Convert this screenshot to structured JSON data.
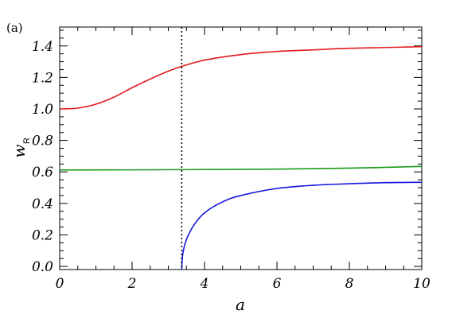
{
  "chart_data": {
    "type": "line",
    "panel_label": "(a)",
    "xlabel": "a",
    "ylabel": "w",
    "ylabel_subscript": "R",
    "xlim": [
      0,
      10
    ],
    "ylim": [
      -0.02,
      1.52
    ],
    "xticks": [
      0,
      2,
      4,
      6,
      8,
      10
    ],
    "xtick_labels": [
      "0",
      "2",
      "4",
      "6",
      "8",
      "10"
    ],
    "yticks": [
      0.0,
      0.2,
      0.4,
      0.6,
      0.8,
      1.0,
      1.2,
      1.4
    ],
    "ytick_labels": [
      "0.0",
      "0.2",
      "0.4",
      "0.6",
      "0.8",
      "1.0",
      "1.2",
      "1.4"
    ],
    "vline": {
      "x": 3.37,
      "style": "dotted",
      "color": "#000000"
    },
    "series": [
      {
        "color": "#e31a1c",
        "x": [
          0,
          0.5,
          1.0,
          1.5,
          2.0,
          2.5,
          3.0,
          3.37,
          4.0,
          5.0,
          6.0,
          7.0,
          8.0,
          9.0,
          10.0
        ],
        "y": [
          1.0,
          1.005,
          1.03,
          1.075,
          1.135,
          1.19,
          1.24,
          1.27,
          1.31,
          1.345,
          1.365,
          1.375,
          1.385,
          1.39,
          1.395
        ]
      },
      {
        "color": "#1a9a1a",
        "x": [
          0,
          2,
          4,
          6,
          8,
          9,
          10
        ],
        "y": [
          0.612,
          0.613,
          0.615,
          0.618,
          0.624,
          0.629,
          0.635
        ]
      },
      {
        "color": "#1414e0",
        "x": [
          3.37,
          3.4,
          3.5,
          3.7,
          4.0,
          4.5,
          5.0,
          6.0,
          7.0,
          8.0,
          9.0,
          10.0
        ],
        "y": [
          -0.02,
          0.08,
          0.17,
          0.26,
          0.34,
          0.41,
          0.45,
          0.495,
          0.515,
          0.525,
          0.532,
          0.534
        ]
      }
    ]
  },
  "colors": {
    "axis": "#000000",
    "background": "#ffffff"
  }
}
